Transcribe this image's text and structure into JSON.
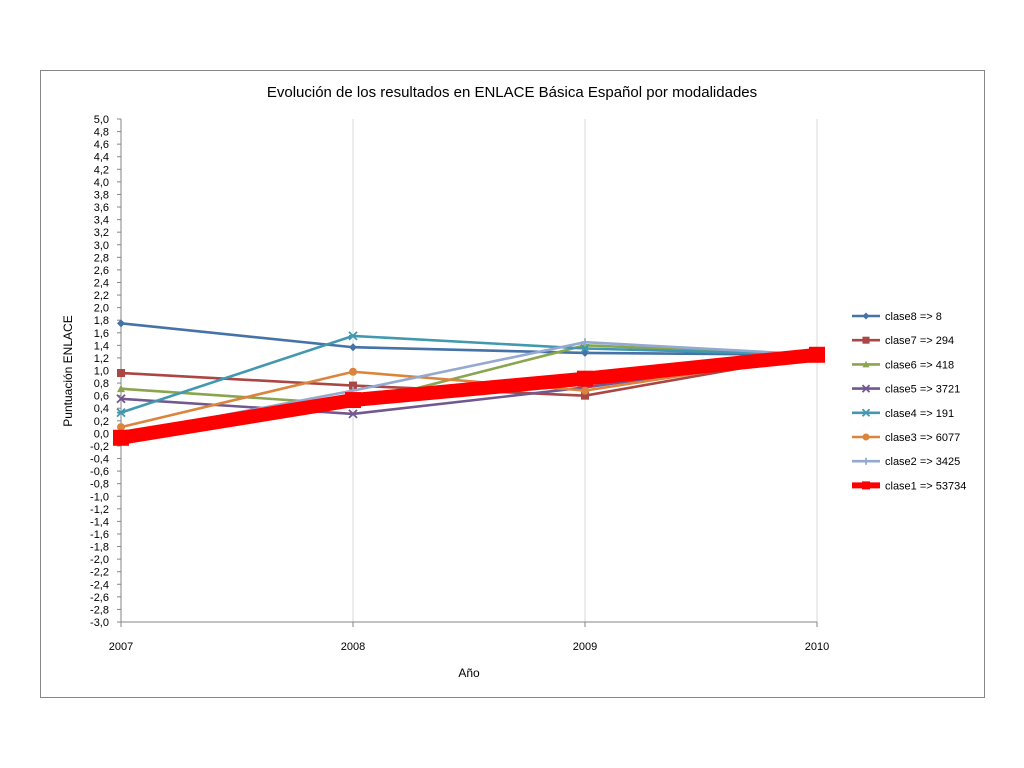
{
  "chart_data": {
    "type": "line",
    "title": "Evolución de los resultados en ENLACE Básica Español por modalidades",
    "xlabel": "Año",
    "ylabel": "Puntuación ENLACE",
    "x": [
      "2007",
      "2008",
      "2009",
      "2010"
    ],
    "ylim": [
      -3.0,
      5.0
    ],
    "ytick_step": 0.2,
    "grid": "vertical",
    "legend_position": "right",
    "series": [
      {
        "name": "clase8 => 8",
        "color": "#4572A7",
        "marker": "diamond",
        "width": "normal",
        "values": [
          1.75,
          1.37,
          1.28,
          1.25
        ]
      },
      {
        "name": "clase7 => 294",
        "color": "#AA4643",
        "marker": "square",
        "width": "normal",
        "values": [
          0.96,
          0.76,
          0.6,
          1.25
        ]
      },
      {
        "name": "clase6 => 418",
        "color": "#89A54E",
        "marker": "triangle",
        "width": "normal",
        "values": [
          0.71,
          0.46,
          1.4,
          1.25
        ]
      },
      {
        "name": "clase5 => 3721",
        "color": "#71588F",
        "marker": "x",
        "width": "normal",
        "values": [
          0.55,
          0.31,
          0.73,
          1.25
        ]
      },
      {
        "name": "clase4 => 191",
        "color": "#4198AF",
        "marker": "star",
        "width": "normal",
        "values": [
          0.33,
          1.55,
          1.35,
          1.25
        ]
      },
      {
        "name": "clase3 => 6077",
        "color": "#DB843D",
        "marker": "circle",
        "width": "normal",
        "values": [
          0.1,
          0.98,
          0.68,
          1.25
        ]
      },
      {
        "name": "clase2 => 3425",
        "color": "#93A9CF",
        "marker": "plus",
        "width": "normal",
        "values": [
          -0.02,
          0.68,
          1.45,
          1.25
        ]
      },
      {
        "name": "clase1 => 53734",
        "color": "#FF0000",
        "marker": "square",
        "width": "thick",
        "values": [
          -0.07,
          0.53,
          0.87,
          1.25
        ]
      }
    ]
  }
}
